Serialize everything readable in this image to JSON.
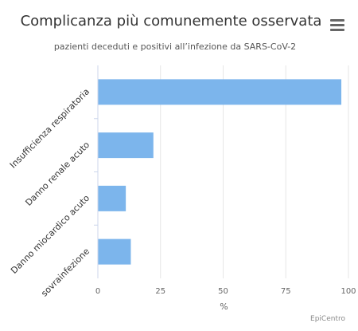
{
  "chart_data": {
    "type": "bar",
    "orientation": "horizontal",
    "title": "Complicanza più comunemente osservata",
    "subtitle": "pazienti deceduti e positivi all’infezione da SARS-CoV-2",
    "categories": [
      "Insufficienza respiratoria",
      "Danno renale acuto",
      "Danno miocardico acuto",
      "sovrainfezione"
    ],
    "values": [
      97,
      22,
      11,
      13
    ],
    "xlabel": "%",
    "ylabel": "",
    "xlim": [
      0,
      100
    ],
    "xticks": [
      0,
      25,
      50,
      75,
      100
    ],
    "bar_color": "#7cb5ec",
    "grid": true
  },
  "menu": {
    "icon": "hamburger-menu-icon"
  },
  "credits": "EpiCentro"
}
